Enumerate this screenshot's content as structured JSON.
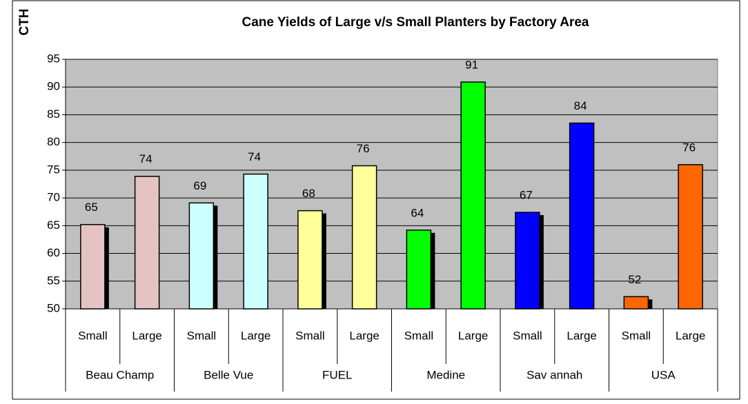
{
  "chart_data": {
    "type": "bar",
    "title": "Cane Yields of Large v/s Small Planters by Factory Area",
    "y_label": "CTH",
    "categories": [
      "Small",
      "Large",
      "Small",
      "Large",
      "Small",
      "Large",
      "Small",
      "Large",
      "Small",
      "Large",
      "Small",
      "Large"
    ],
    "groups": [
      {
        "name": "Beau Champ",
        "color": "#e6c3c3"
      },
      {
        "name": "Belle Vue",
        "color": "#ccffff"
      },
      {
        "name": "FUEL",
        "color": "#ffff99"
      },
      {
        "name": "Medine",
        "color": "#00ff00"
      },
      {
        "name": "Sav annah",
        "color": "#0000ff"
      },
      {
        "name": "USA",
        "color": "#ff6600"
      }
    ],
    "values": [
      65.2,
      73.9,
      69.1,
      74.3,
      67.7,
      75.8,
      64.2,
      90.9,
      67.4,
      83.5,
      52.2,
      76.0
    ],
    "value_labels": [
      "65",
      "74",
      "69",
      "74",
      "68",
      "76",
      "64",
      "91",
      "67",
      "84",
      "52",
      "76"
    ],
    "ylim": [
      50,
      95
    ],
    "yticks": [
      50,
      55,
      60,
      65,
      70,
      75,
      80,
      85,
      90,
      95
    ],
    "grid": true
  }
}
